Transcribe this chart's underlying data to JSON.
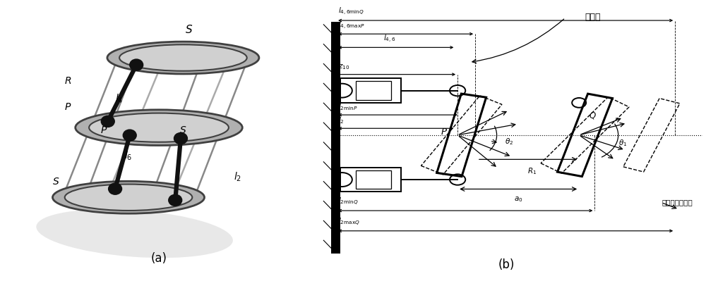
{
  "fig_width": 10.0,
  "fig_height": 3.99,
  "dpi": 100,
  "bg_color": "#ffffff",
  "panel_a_label": "(a)",
  "panel_b_label": "(b)",
  "title_b": "动平台",
  "label_dongpingtai_axiang": "动平台轴向位移"
}
